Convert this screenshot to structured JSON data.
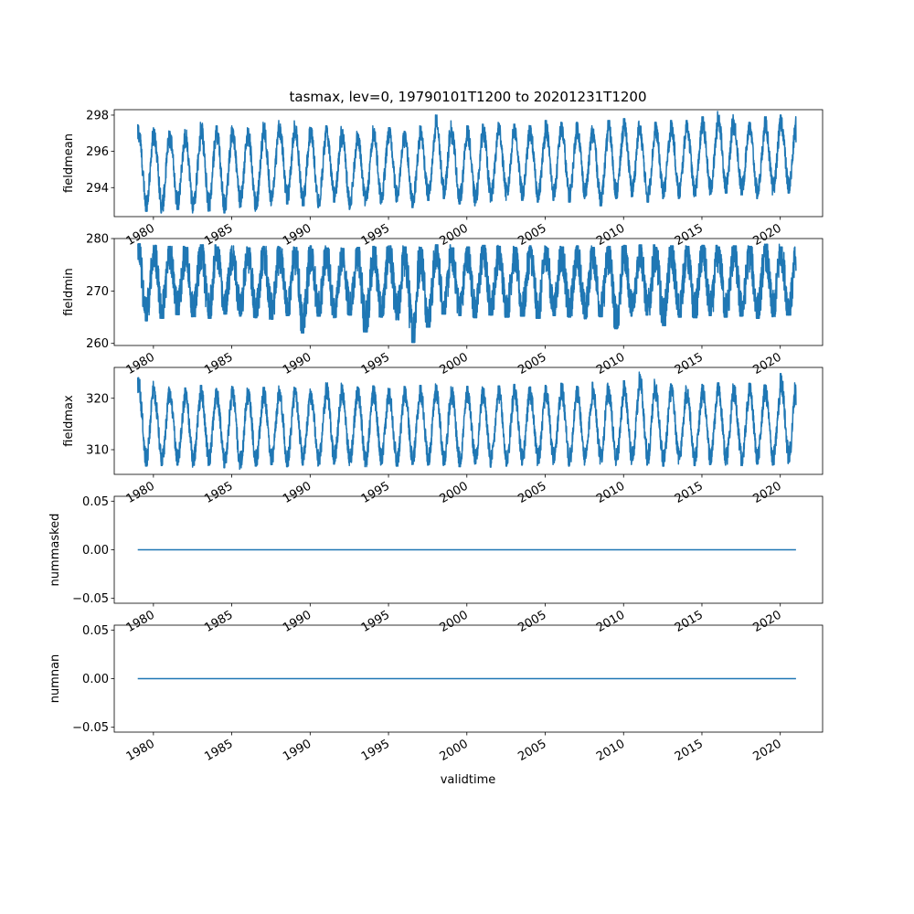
{
  "title": "tasmax, lev=0, 19790101T1200 to 20201231T1200",
  "xlabel": "validtime",
  "x_tick_labels": [
    "1980",
    "1985",
    "1990",
    "1995",
    "2000",
    "2005",
    "2010",
    "2015",
    "2020"
  ],
  "line_color": "#1f77b4",
  "chart_data": [
    {
      "type": "line",
      "ylabel": "fieldmean",
      "xlim": [
        1977.5,
        2022.7
      ],
      "ylim": [
        292.4,
        298.3
      ],
      "y_ticks": [
        294,
        296,
        298
      ],
      "y_tick_labels": [
        "294",
        "296",
        "298"
      ],
      "x_range": [
        1979.0,
        2021.0
      ],
      "series": [
        {
          "values": [
            {
              "year": 1979,
              "min": 292.7,
              "max": 297.5
            },
            {
              "year": 1980,
              "min": 292.6,
              "max": 297.3
            },
            {
              "year": 1981,
              "min": 292.8,
              "max": 297.1
            },
            {
              "year": 1982,
              "min": 292.6,
              "max": 297.2
            },
            {
              "year": 1983,
              "min": 292.7,
              "max": 297.6
            },
            {
              "year": 1984,
              "min": 292.6,
              "max": 297.4
            },
            {
              "year": 1985,
              "min": 292.9,
              "max": 297.4
            },
            {
              "year": 1986,
              "min": 292.7,
              "max": 297.3
            },
            {
              "year": 1987,
              "min": 293.0,
              "max": 297.6
            },
            {
              "year": 1988,
              "min": 293.1,
              "max": 297.7
            },
            {
              "year": 1989,
              "min": 293.0,
              "max": 297.5
            },
            {
              "year": 1990,
              "min": 292.9,
              "max": 297.3
            },
            {
              "year": 1991,
              "min": 293.2,
              "max": 297.4
            },
            {
              "year": 1992,
              "min": 292.8,
              "max": 297.2
            },
            {
              "year": 1993,
              "min": 293.0,
              "max": 297.0
            },
            {
              "year": 1994,
              "min": 293.1,
              "max": 297.4
            },
            {
              "year": 1995,
              "min": 293.2,
              "max": 297.3
            },
            {
              "year": 1996,
              "min": 292.9,
              "max": 297.1
            },
            {
              "year": 1997,
              "min": 293.3,
              "max": 297.4
            },
            {
              "year": 1998,
              "min": 293.4,
              "max": 298.0
            },
            {
              "year": 1999,
              "min": 293.1,
              "max": 297.3
            },
            {
              "year": 2000,
              "min": 293.0,
              "max": 297.4
            },
            {
              "year": 2001,
              "min": 293.2,
              "max": 297.5
            },
            {
              "year": 2002,
              "min": 293.3,
              "max": 297.6
            },
            {
              "year": 2003,
              "min": 293.3,
              "max": 297.5
            },
            {
              "year": 2004,
              "min": 293.2,
              "max": 297.4
            },
            {
              "year": 2005,
              "min": 293.3,
              "max": 297.7
            },
            {
              "year": 2006,
              "min": 293.2,
              "max": 297.6
            },
            {
              "year": 2007,
              "min": 293.4,
              "max": 297.6
            },
            {
              "year": 2008,
              "min": 293.0,
              "max": 297.3
            },
            {
              "year": 2009,
              "min": 293.4,
              "max": 297.7
            },
            {
              "year": 2010,
              "min": 293.5,
              "max": 297.8
            },
            {
              "year": 2011,
              "min": 293.2,
              "max": 297.4
            },
            {
              "year": 2012,
              "min": 293.4,
              "max": 297.6
            },
            {
              "year": 2013,
              "min": 293.4,
              "max": 297.7
            },
            {
              "year": 2014,
              "min": 293.5,
              "max": 297.7
            },
            {
              "year": 2015,
              "min": 293.6,
              "max": 297.9
            },
            {
              "year": 2016,
              "min": 293.7,
              "max": 298.2
            },
            {
              "year": 2017,
              "min": 293.6,
              "max": 297.8
            },
            {
              "year": 2018,
              "min": 293.4,
              "max": 297.6
            },
            {
              "year": 2019,
              "min": 293.6,
              "max": 297.9
            },
            {
              "year": 2020,
              "min": 293.7,
              "max": 298.0
            }
          ]
        }
      ]
    },
    {
      "type": "line",
      "ylabel": "fieldmin",
      "xlim": [
        1977.5,
        2022.7
      ],
      "ylim": [
        259.6,
        280.0
      ],
      "y_ticks": [
        260,
        270,
        280
      ],
      "y_tick_labels": [
        "260",
        "270",
        "280"
      ],
      "x_range": [
        1979.0,
        2021.0
      ],
      "series": [
        {
          "values": [
            {
              "year": 1979,
              "min": 264.3,
              "max": 279.0
            },
            {
              "year": 1980,
              "min": 264.8,
              "max": 278.7
            },
            {
              "year": 1981,
              "min": 265.5,
              "max": 278.5
            },
            {
              "year": 1982,
              "min": 265.1,
              "max": 278.3
            },
            {
              "year": 1983,
              "min": 264.8,
              "max": 278.8
            },
            {
              "year": 1984,
              "min": 265.6,
              "max": 278.4
            },
            {
              "year": 1985,
              "min": 265.2,
              "max": 278.6
            },
            {
              "year": 1986,
              "min": 264.9,
              "max": 278.2
            },
            {
              "year": 1987,
              "min": 264.6,
              "max": 278.5
            },
            {
              "year": 1988,
              "min": 265.3,
              "max": 278.4
            },
            {
              "year": 1989,
              "min": 262.0,
              "max": 278.3
            },
            {
              "year": 1990,
              "min": 265.2,
              "max": 278.6
            },
            {
              "year": 1991,
              "min": 264.9,
              "max": 278.2
            },
            {
              "year": 1992,
              "min": 265.4,
              "max": 278.1
            },
            {
              "year": 1993,
              "min": 262.2,
              "max": 278.3
            },
            {
              "year": 1994,
              "min": 265.0,
              "max": 278.5
            },
            {
              "year": 1995,
              "min": 264.5,
              "max": 278.6
            },
            {
              "year": 1996,
              "min": 260.2,
              "max": 278.4
            },
            {
              "year": 1997,
              "min": 263.1,
              "max": 278.3
            },
            {
              "year": 1998,
              "min": 265.6,
              "max": 278.8
            },
            {
              "year": 1999,
              "min": 265.3,
              "max": 278.2
            },
            {
              "year": 2000,
              "min": 264.9,
              "max": 278.4
            },
            {
              "year": 2001,
              "min": 265.4,
              "max": 278.7
            },
            {
              "year": 2002,
              "min": 265.0,
              "max": 278.5
            },
            {
              "year": 2003,
              "min": 265.2,
              "max": 278.3
            },
            {
              "year": 2004,
              "min": 264.8,
              "max": 278.6
            },
            {
              "year": 2005,
              "min": 265.3,
              "max": 278.5
            },
            {
              "year": 2006,
              "min": 265.0,
              "max": 278.4
            },
            {
              "year": 2007,
              "min": 264.7,
              "max": 278.6
            },
            {
              "year": 2008,
              "min": 265.1,
              "max": 278.3
            },
            {
              "year": 2009,
              "min": 262.8,
              "max": 278.5
            },
            {
              "year": 2010,
              "min": 265.2,
              "max": 278.7
            },
            {
              "year": 2011,
              "min": 265.4,
              "max": 278.8
            },
            {
              "year": 2012,
              "min": 263.4,
              "max": 278.3
            },
            {
              "year": 2013,
              "min": 265.0,
              "max": 278.6
            },
            {
              "year": 2014,
              "min": 264.9,
              "max": 278.5
            },
            {
              "year": 2015,
              "min": 265.3,
              "max": 278.7
            },
            {
              "year": 2016,
              "min": 265.0,
              "max": 278.4
            },
            {
              "year": 2017,
              "min": 265.2,
              "max": 278.6
            },
            {
              "year": 2018,
              "min": 264.8,
              "max": 278.5
            },
            {
              "year": 2019,
              "min": 265.1,
              "max": 278.9
            },
            {
              "year": 2020,
              "min": 265.4,
              "max": 278.4
            }
          ]
        }
      ]
    },
    {
      "type": "line",
      "ylabel": "fieldmax",
      "xlim": [
        1977.5,
        2022.7
      ],
      "ylim": [
        305.2,
        326.0
      ],
      "y_ticks": [
        310,
        320
      ],
      "y_tick_labels": [
        "310",
        "320"
      ],
      "x_range": [
        1979.0,
        2021.0
      ],
      "series": [
        {
          "values": [
            {
              "year": 1979,
              "min": 306.8,
              "max": 324.0
            },
            {
              "year": 1980,
              "min": 306.9,
              "max": 322.2
            },
            {
              "year": 1981,
              "min": 307.0,
              "max": 321.8
            },
            {
              "year": 1982,
              "min": 306.6,
              "max": 322.0
            },
            {
              "year": 1983,
              "min": 306.9,
              "max": 322.5
            },
            {
              "year": 1984,
              "min": 306.5,
              "max": 321.9
            },
            {
              "year": 1985,
              "min": 306.2,
              "max": 322.3
            },
            {
              "year": 1986,
              "min": 306.8,
              "max": 321.7
            },
            {
              "year": 1987,
              "min": 307.1,
              "max": 322.1
            },
            {
              "year": 1988,
              "min": 306.7,
              "max": 322.4
            },
            {
              "year": 1989,
              "min": 307.0,
              "max": 322.0
            },
            {
              "year": 1990,
              "min": 306.8,
              "max": 321.8
            },
            {
              "year": 1991,
              "min": 307.2,
              "max": 323.0
            },
            {
              "year": 1992,
              "min": 306.9,
              "max": 322.6
            },
            {
              "year": 1993,
              "min": 306.7,
              "max": 322.2
            },
            {
              "year": 1994,
              "min": 307.0,
              "max": 322.4
            },
            {
              "year": 1995,
              "min": 306.8,
              "max": 321.9
            },
            {
              "year": 1996,
              "min": 307.1,
              "max": 322.3
            },
            {
              "year": 1997,
              "min": 307.0,
              "max": 322.5
            },
            {
              "year": 1998,
              "min": 306.9,
              "max": 322.8
            },
            {
              "year": 1999,
              "min": 306.7,
              "max": 322.1
            },
            {
              "year": 2000,
              "min": 307.2,
              "max": 322.3
            },
            {
              "year": 2001,
              "min": 306.6,
              "max": 322.0
            },
            {
              "year": 2002,
              "min": 306.8,
              "max": 322.4
            },
            {
              "year": 2003,
              "min": 307.0,
              "max": 322.7
            },
            {
              "year": 2004,
              "min": 306.9,
              "max": 322.2
            },
            {
              "year": 2005,
              "min": 307.1,
              "max": 322.5
            },
            {
              "year": 2006,
              "min": 306.8,
              "max": 322.9
            },
            {
              "year": 2007,
              "min": 307.0,
              "max": 322.3
            },
            {
              "year": 2008,
              "min": 307.2,
              "max": 323.1
            },
            {
              "year": 2009,
              "min": 306.9,
              "max": 322.4
            },
            {
              "year": 2010,
              "min": 307.1,
              "max": 323.4
            },
            {
              "year": 2011,
              "min": 307.0,
              "max": 325.1
            },
            {
              "year": 2012,
              "min": 306.8,
              "max": 322.6
            },
            {
              "year": 2013,
              "min": 307.2,
              "max": 322.8
            },
            {
              "year": 2014,
              "min": 306.9,
              "max": 322.2
            },
            {
              "year": 2015,
              "min": 307.1,
              "max": 322.7
            },
            {
              "year": 2016,
              "min": 307.0,
              "max": 323.0
            },
            {
              "year": 2017,
              "min": 306.9,
              "max": 322.5
            },
            {
              "year": 2018,
              "min": 307.2,
              "max": 322.9
            },
            {
              "year": 2019,
              "min": 307.0,
              "max": 322.6
            },
            {
              "year": 2020,
              "min": 307.3,
              "max": 324.8
            }
          ]
        }
      ]
    },
    {
      "type": "line",
      "ylabel": "nummasked",
      "xlim": [
        1977.5,
        2022.7
      ],
      "ylim": [
        -0.055,
        0.055
      ],
      "y_ticks": [
        -0.05,
        0.0,
        0.05
      ],
      "y_tick_labels": [
        "−0.05",
        "0.00",
        "0.05"
      ],
      "x_range": [
        1979.0,
        2021.0
      ],
      "series": [
        {
          "values": [
            {
              "x": 1979.0,
              "y": 0.0
            },
            {
              "x": 2021.0,
              "y": 0.0
            }
          ]
        }
      ]
    },
    {
      "type": "line",
      "ylabel": "numnan",
      "xlim": [
        1977.5,
        2022.7
      ],
      "ylim": [
        -0.055,
        0.055
      ],
      "y_ticks": [
        -0.05,
        0.0,
        0.05
      ],
      "y_tick_labels": [
        "−0.05",
        "0.00",
        "0.05"
      ],
      "x_range": [
        1979.0,
        2021.0
      ],
      "series": [
        {
          "values": [
            {
              "x": 1979.0,
              "y": 0.0
            },
            {
              "x": 2021.0,
              "y": 0.0
            }
          ]
        }
      ]
    }
  ]
}
